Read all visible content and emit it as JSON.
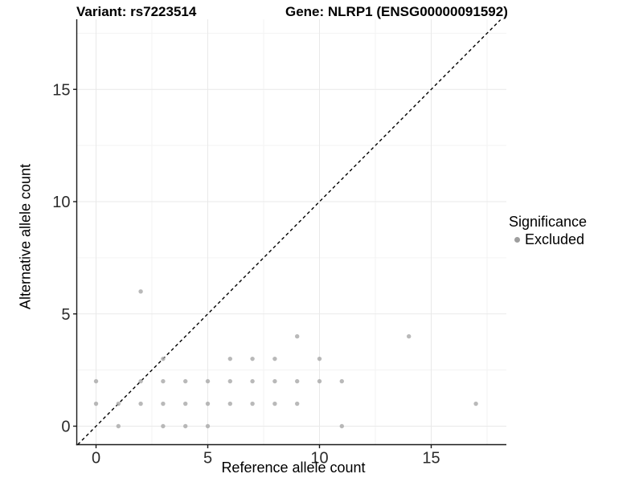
{
  "figure": {
    "title_left": "Variant: rs7223514",
    "title_right": "Gene: NLRP1 (ENSG00000091592)"
  },
  "chart_data": {
    "type": "scatter",
    "title": "Variant: rs7223514 / Gene: NLRP1 (ENSG00000091592)",
    "xlabel": "Reference allele count",
    "ylabel": "Alternative allele count",
    "xlim": [
      -0.9,
      18.35
    ],
    "ylim": [
      -0.85,
      18.1
    ],
    "x_ticks": [
      0,
      5,
      10,
      15
    ],
    "y_ticks": [
      0,
      5,
      10,
      15
    ],
    "x_minor_gridlines": [
      2.5,
      7.5,
      12.5,
      17.5
    ],
    "y_minor_gridlines": [
      2.5,
      7.5,
      12.5,
      17.5
    ],
    "grid": true,
    "legend_position": "right",
    "identity_line": {
      "style": "dashed",
      "from": -0.82,
      "to": 18.1
    },
    "series": [
      {
        "name": "Excluded",
        "color": "#a9a9a9",
        "points": [
          [
            1,
            0
          ],
          [
            3,
            0
          ],
          [
            4,
            0
          ],
          [
            5,
            0
          ],
          [
            11,
            0
          ],
          [
            0,
            1
          ],
          [
            1,
            1
          ],
          [
            2,
            1
          ],
          [
            3,
            1
          ],
          [
            4,
            1
          ],
          [
            5,
            1
          ],
          [
            6,
            1
          ],
          [
            7,
            1
          ],
          [
            8,
            1
          ],
          [
            9,
            1
          ],
          [
            17,
            1
          ],
          [
            0,
            2
          ],
          [
            2,
            2
          ],
          [
            3,
            2
          ],
          [
            4,
            2
          ],
          [
            5,
            2
          ],
          [
            6,
            2
          ],
          [
            7,
            2
          ],
          [
            8,
            2
          ],
          [
            9,
            2
          ],
          [
            10,
            2
          ],
          [
            11,
            2
          ],
          [
            3,
            3
          ],
          [
            6,
            3
          ],
          [
            7,
            3
          ],
          [
            8,
            3
          ],
          [
            10,
            3
          ],
          [
            9,
            4
          ],
          [
            14,
            4
          ],
          [
            2,
            6
          ]
        ]
      }
    ],
    "legend": {
      "title": "Significance",
      "items": [
        {
          "label": "Excluded",
          "color": "#9e9e9e"
        }
      ]
    },
    "colors": {
      "point": "#a9a9a9",
      "grid_major": "#e9e9e9",
      "grid_minor": "#f3f3f3",
      "axis_line": "#1a1a1a",
      "identity_line": "#000000",
      "tick_text": "#2b2b2b"
    }
  }
}
